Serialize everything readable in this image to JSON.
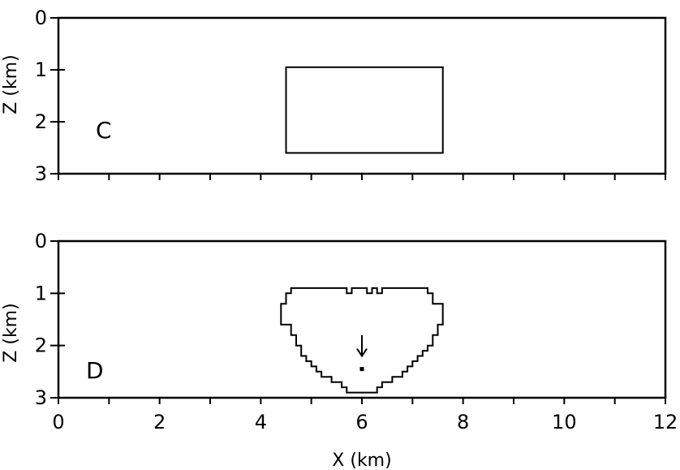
{
  "chart_data": [
    {
      "type": "diagram",
      "panel_label": "C",
      "ylabel": "Z (km)",
      "ylim": [
        0,
        3
      ],
      "xlim": [
        0,
        12
      ],
      "y_ticks": [
        "0",
        "1",
        "2",
        "3"
      ],
      "y_tick_values": [
        0,
        1,
        2,
        3
      ],
      "x_minor_ticks": [
        0,
        1,
        2,
        3,
        4,
        5,
        6,
        7,
        8,
        9,
        10,
        11,
        12
      ],
      "rectangle": {
        "x": [
          4.5,
          7.6
        ],
        "z": [
          0.95,
          2.6
        ]
      }
    },
    {
      "type": "diagram",
      "panel_label": "D",
      "ylabel": "Z (km)",
      "xlabel": "X (km)",
      "ylim": [
        0,
        3
      ],
      "xlim": [
        0,
        12
      ],
      "y_ticks": [
        "0",
        "1",
        "2",
        "3"
      ],
      "y_tick_values": [
        0,
        1,
        2,
        3
      ],
      "x_ticks": [
        "0",
        "2",
        "4",
        "6",
        "8",
        "10",
        "12"
      ],
      "x_tick_values": [
        0,
        2,
        4,
        6,
        8,
        10,
        12
      ],
      "x_minor_ticks": [
        0,
        1,
        2,
        3,
        4,
        5,
        6,
        7,
        8,
        9,
        10,
        11,
        12
      ],
      "outline": [
        [
          4.4,
          1.2
        ],
        [
          4.5,
          1.2
        ],
        [
          4.5,
          1.0
        ],
        [
          4.6,
          1.0
        ],
        [
          4.6,
          0.9
        ],
        [
          5.7,
          0.9
        ],
        [
          5.7,
          1.0
        ],
        [
          5.8,
          1.0
        ],
        [
          5.8,
          0.9
        ],
        [
          6.1,
          0.9
        ],
        [
          6.1,
          1.0
        ],
        [
          6.2,
          1.0
        ],
        [
          6.2,
          0.9
        ],
        [
          6.3,
          0.9
        ],
        [
          6.3,
          1.0
        ],
        [
          6.4,
          1.0
        ],
        [
          6.4,
          0.9
        ],
        [
          7.3,
          0.9
        ],
        [
          7.3,
          1.0
        ],
        [
          7.4,
          1.0
        ],
        [
          7.4,
          1.2
        ],
        [
          7.6,
          1.2
        ],
        [
          7.6,
          1.6
        ],
        [
          7.5,
          1.6
        ],
        [
          7.5,
          1.8
        ],
        [
          7.4,
          1.8
        ],
        [
          7.4,
          2.0
        ],
        [
          7.3,
          2.0
        ],
        [
          7.3,
          2.1
        ],
        [
          7.2,
          2.1
        ],
        [
          7.2,
          2.2
        ],
        [
          7.1,
          2.2
        ],
        [
          7.1,
          2.3
        ],
        [
          7.0,
          2.3
        ],
        [
          7.0,
          2.4
        ],
        [
          6.9,
          2.4
        ],
        [
          6.9,
          2.5
        ],
        [
          6.8,
          2.5
        ],
        [
          6.8,
          2.6
        ],
        [
          6.6,
          2.6
        ],
        [
          6.6,
          2.7
        ],
        [
          6.4,
          2.7
        ],
        [
          6.4,
          2.8
        ],
        [
          6.3,
          2.8
        ],
        [
          6.3,
          2.9
        ],
        [
          5.7,
          2.9
        ],
        [
          5.7,
          2.8
        ],
        [
          5.6,
          2.8
        ],
        [
          5.6,
          2.7
        ],
        [
          5.4,
          2.7
        ],
        [
          5.4,
          2.6
        ],
        [
          5.2,
          2.6
        ],
        [
          5.2,
          2.5
        ],
        [
          5.1,
          2.5
        ],
        [
          5.1,
          2.4
        ],
        [
          5.0,
          2.4
        ],
        [
          5.0,
          2.3
        ],
        [
          4.9,
          2.3
        ],
        [
          4.9,
          2.2
        ],
        [
          4.8,
          2.2
        ],
        [
          4.8,
          2.0
        ],
        [
          4.7,
          2.0
        ],
        [
          4.7,
          1.8
        ],
        [
          4.6,
          1.8
        ],
        [
          4.6,
          1.6
        ],
        [
          4.4,
          1.6
        ],
        [
          4.4,
          1.2
        ]
      ],
      "arrow": {
        "x": 6.0,
        "z_start": 1.8,
        "z_end": 2.2
      },
      "marker": {
        "x": 6.0,
        "z": 2.45
      }
    }
  ]
}
